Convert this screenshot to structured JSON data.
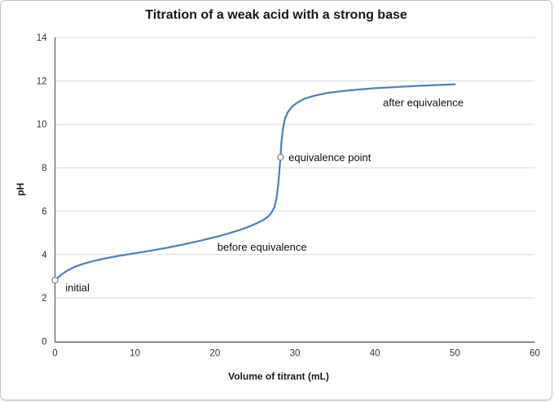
{
  "chart_data": {
    "type": "line",
    "title": "Titration of a weak acid with a strong base",
    "xlabel": "Volume of titrant (mL)",
    "ylabel": "pH",
    "xlim": [
      0,
      60
    ],
    "ylim": [
      0,
      14
    ],
    "xticks": [
      0,
      10,
      20,
      30,
      40,
      50,
      60
    ],
    "yticks": [
      0,
      2,
      4,
      6,
      8,
      10,
      12,
      14
    ],
    "grid": "horizontal-only",
    "legend": "none",
    "colors": {
      "line": "#4F81BD",
      "gridline": "#D9D9D9",
      "axis": "#595959",
      "marker_ring": "#7F7F7F",
      "marker_fill": "#FFFFFF"
    },
    "series": [
      {
        "name": "titration curve",
        "points": [
          [
            0,
            2.82
          ],
          [
            0.4,
            2.95
          ],
          [
            0.9,
            3.1
          ],
          [
            1.5,
            3.25
          ],
          [
            2.5,
            3.44
          ],
          [
            3.5,
            3.57
          ],
          [
            5,
            3.72
          ],
          [
            6.5,
            3.84
          ],
          [
            8,
            3.94
          ],
          [
            10,
            4.06
          ],
          [
            12,
            4.18
          ],
          [
            14,
            4.31
          ],
          [
            16,
            4.46
          ],
          [
            18,
            4.62
          ],
          [
            20,
            4.8
          ],
          [
            21.5,
            4.95
          ],
          [
            23,
            5.12
          ],
          [
            24,
            5.25
          ],
          [
            25,
            5.4
          ],
          [
            26,
            5.58
          ],
          [
            26.7,
            5.76
          ],
          [
            27.1,
            5.95
          ],
          [
            27.45,
            6.2
          ],
          [
            27.7,
            6.6
          ],
          [
            27.9,
            7.15
          ],
          [
            28.05,
            7.85
          ],
          [
            28.2,
            8.48
          ],
          [
            28.32,
            9.2
          ],
          [
            28.5,
            9.8
          ],
          [
            28.75,
            10.25
          ],
          [
            29.1,
            10.55
          ],
          [
            29.6,
            10.8
          ],
          [
            30.3,
            11.0
          ],
          [
            31.2,
            11.18
          ],
          [
            32.5,
            11.32
          ],
          [
            34,
            11.44
          ],
          [
            36,
            11.53
          ],
          [
            38,
            11.6
          ],
          [
            40,
            11.66
          ],
          [
            43,
            11.72
          ],
          [
            46,
            11.78
          ],
          [
            50,
            11.84
          ]
        ]
      }
    ],
    "markers": [
      {
        "name": "initial-point",
        "x": 0,
        "y": 2.82
      },
      {
        "name": "equivalence-point",
        "x": 28.2,
        "y": 8.48
      }
    ],
    "annotations": [
      {
        "text": "initial",
        "x": 1.3,
        "y": 2.48,
        "anchor": "start"
      },
      {
        "text": "before equivalence",
        "x": 20.3,
        "y": 4.35,
        "anchor": "start"
      },
      {
        "text": "equivalence point",
        "x": 29.2,
        "y": 8.48,
        "anchor": "start"
      },
      {
        "text": "after equivalence",
        "x": 41.0,
        "y": 11.0,
        "anchor": "start"
      }
    ]
  }
}
